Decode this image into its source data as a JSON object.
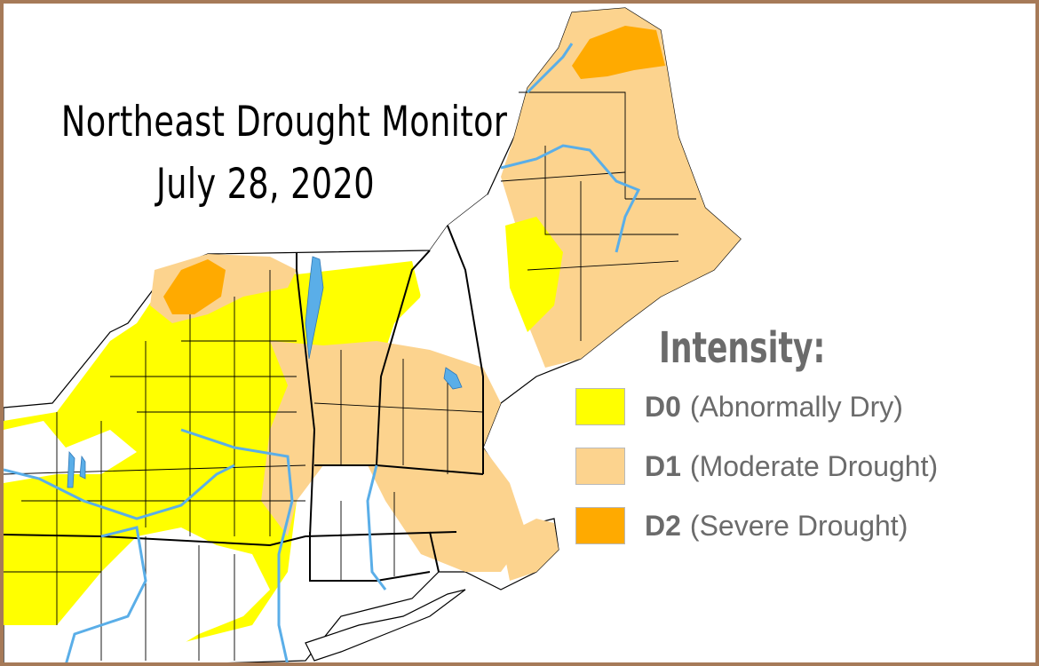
{
  "title": {
    "line1": "Northeast Drought Monitor",
    "line2": "July 28, 2020"
  },
  "legend": {
    "title": "Intensity:",
    "items": [
      {
        "code": "D0",
        "label": "(Abnormally Dry)",
        "color": "#ffff00"
      },
      {
        "code": "D1",
        "label": "(Moderate Drought)",
        "color": "#fcd38e"
      },
      {
        "code": "D2",
        "label": "(Severe Drought)",
        "color": "#ffaa00"
      }
    ]
  },
  "colors": {
    "frame": "#a67a58",
    "none": "#ffffff",
    "water": "#5aaee8",
    "county_lines": "#000000"
  }
}
